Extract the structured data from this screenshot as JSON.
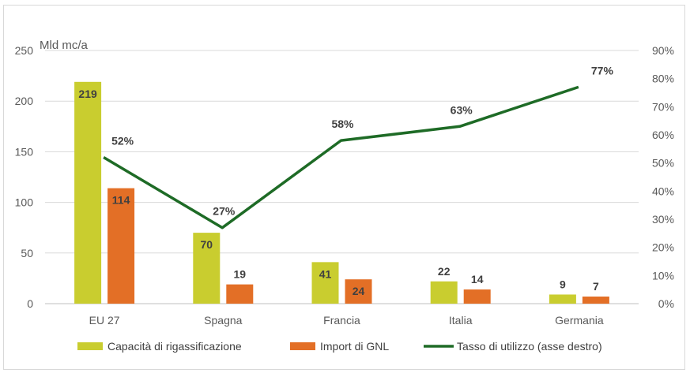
{
  "chart_data": {
    "type": "bar",
    "title": "",
    "unit_label": "Mld mc/a",
    "categories": [
      "EU 27",
      "Spagna",
      "Francia",
      "Italia",
      "Germania"
    ],
    "series": [
      {
        "name": "Capacità di rigassificazione",
        "type": "bar",
        "axis": "left",
        "color": "#c9cd2f",
        "values": [
          219,
          70,
          41,
          22,
          9
        ],
        "labels": [
          "219",
          "70",
          "41",
          "22",
          "9"
        ]
      },
      {
        "name": "Import di GNL",
        "type": "bar",
        "axis": "left",
        "color": "#e36f26",
        "values": [
          114,
          19,
          24,
          14,
          7
        ],
        "labels": [
          "114",
          "19",
          "24",
          "14",
          "7"
        ]
      },
      {
        "name": "Tasso di utilizzo (asse destro)",
        "type": "line",
        "axis": "right",
        "color": "#1e6b26",
        "values": [
          52,
          27,
          58,
          63,
          77
        ],
        "labels": [
          "52%",
          "27%",
          "58%",
          "63%",
          "77%"
        ]
      }
    ],
    "y_left": {
      "min": 0,
      "max": 250,
      "ticks": [
        "0",
        "50",
        "100",
        "150",
        "200",
        "250"
      ]
    },
    "y_right": {
      "min": 0,
      "max": 90,
      "ticks": [
        "0%",
        "10%",
        "20%",
        "30%",
        "40%",
        "50%",
        "60%",
        "70%",
        "80%",
        "90%"
      ]
    },
    "grid": true,
    "legend": "bottom"
  }
}
